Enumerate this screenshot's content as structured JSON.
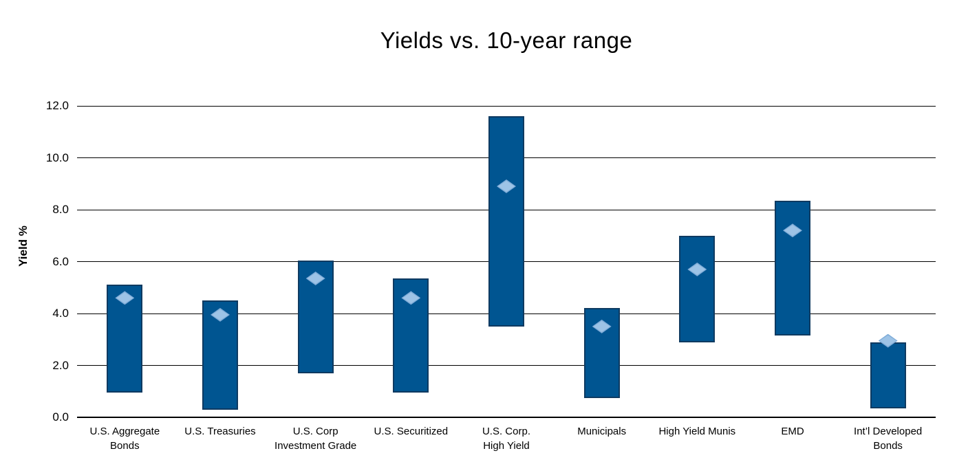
{
  "chart_data": {
    "type": "bar",
    "subtype": "floating-range-bars-with-markers",
    "title": "Yields vs. 10-year range",
    "xlabel": "",
    "ylabel": "Yield %",
    "ylim": [
      0.0,
      12.0
    ],
    "yticks": [
      0.0,
      2.0,
      4.0,
      6.0,
      8.0,
      10.0,
      12.0
    ],
    "ytick_labels": [
      "0.0",
      "2.0",
      "4.0",
      "6.0",
      "8.0",
      "10.0",
      "12.0"
    ],
    "grid": true,
    "legend": false,
    "categories": [
      "U.S. Aggregate\nBonds",
      "U.S. Treasuries",
      "U.S. Corp\nInvestment Grade",
      "U.S. Securitized",
      "U.S. Corp.\nHigh Yield",
      "Municipals",
      "High Yield Munis",
      "EMD",
      "Int’l Developed\nBonds"
    ],
    "series": [
      {
        "name": "range_low",
        "values": [
          0.95,
          0.3,
          1.7,
          0.95,
          3.5,
          0.75,
          2.9,
          3.15,
          0.35
        ]
      },
      {
        "name": "range_high",
        "values": [
          5.1,
          4.5,
          6.05,
          5.35,
          11.6,
          4.2,
          7.0,
          8.35,
          2.9
        ]
      },
      {
        "name": "current_yield_marker",
        "values": [
          4.6,
          3.95,
          5.35,
          4.6,
          8.9,
          3.5,
          5.7,
          7.2,
          2.95
        ]
      }
    ],
    "colors": {
      "bar_fill": "#005591",
      "bar_border": "#0E3A61",
      "marker_fill": "#9DC3E6",
      "marker_edge": "#7FACD8",
      "gridline": "#000000",
      "text": "#000000",
      "background": "#FFFFFF"
    }
  }
}
